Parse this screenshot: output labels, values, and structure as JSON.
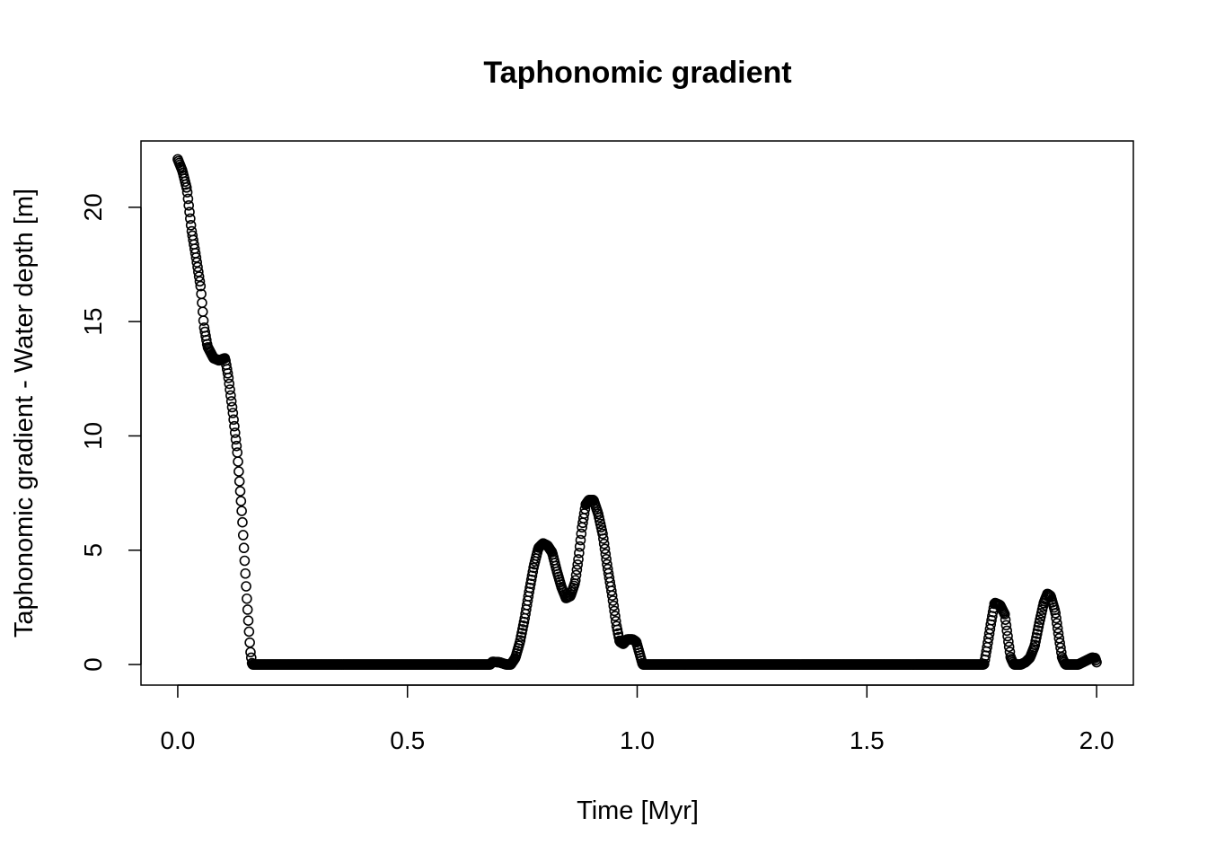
{
  "chart_data": {
    "type": "scatter",
    "title": "Taphonomic gradient",
    "xlabel": "Time [Myr]",
    "ylabel": "Taphonomic gradient - Water depth [m]",
    "xlim": [
      -0.08,
      2.08
    ],
    "ylim": [
      -0.9,
      22.9
    ],
    "xticks": [
      0.0,
      0.5,
      1.0,
      1.5,
      2.0
    ],
    "xtick_labels": [
      "0.0",
      "0.5",
      "1.0",
      "1.5",
      "2.0"
    ],
    "yticks": [
      0,
      5,
      10,
      15,
      20
    ],
    "ytick_labels": [
      "0",
      "5",
      "10",
      "15",
      "20"
    ],
    "grid": false,
    "marker": "open-circle",
    "color": "#000000",
    "profile": [
      [
        0.0,
        22.1
      ],
      [
        0.01,
        21.6
      ],
      [
        0.02,
        20.8
      ],
      [
        0.03,
        19.0
      ],
      [
        0.04,
        17.8
      ],
      [
        0.05,
        16.5
      ],
      [
        0.057,
        14.8
      ],
      [
        0.065,
        13.9
      ],
      [
        0.078,
        13.4
      ],
      [
        0.09,
        13.3
      ],
      [
        0.103,
        13.4
      ],
      [
        0.11,
        12.6
      ],
      [
        0.12,
        11.0
      ],
      [
        0.13,
        9.2
      ],
      [
        0.14,
        6.5
      ],
      [
        0.15,
        3.0
      ],
      [
        0.158,
        0.6
      ],
      [
        0.162,
        0.0
      ],
      [
        0.68,
        0.0
      ],
      [
        0.685,
        0.12
      ],
      [
        0.7,
        0.1
      ],
      [
        0.715,
        0.0
      ],
      [
        0.725,
        0.0
      ],
      [
        0.735,
        0.3
      ],
      [
        0.745,
        1.0
      ],
      [
        0.755,
        2.0
      ],
      [
        0.765,
        3.2
      ],
      [
        0.775,
        4.3
      ],
      [
        0.785,
        5.1
      ],
      [
        0.795,
        5.3
      ],
      [
        0.805,
        5.2
      ],
      [
        0.815,
        4.9
      ],
      [
        0.825,
        4.1
      ],
      [
        0.835,
        3.4
      ],
      [
        0.845,
        2.9
      ],
      [
        0.855,
        3.0
      ],
      [
        0.865,
        3.6
      ],
      [
        0.872,
        4.6
      ],
      [
        0.88,
        6.0
      ],
      [
        0.888,
        7.0
      ],
      [
        0.895,
        7.2
      ],
      [
        0.905,
        7.2
      ],
      [
        0.915,
        6.6
      ],
      [
        0.925,
        5.7
      ],
      [
        0.935,
        4.3
      ],
      [
        0.945,
        3.1
      ],
      [
        0.955,
        1.7
      ],
      [
        0.962,
        1.0
      ],
      [
        0.97,
        0.9
      ],
      [
        0.978,
        1.1
      ],
      [
        0.99,
        1.1
      ],
      [
        0.998,
        1.0
      ],
      [
        1.005,
        0.5
      ],
      [
        1.012,
        0.0
      ],
      [
        1.755,
        0.0
      ],
      [
        1.762,
        0.8
      ],
      [
        1.77,
        1.8
      ],
      [
        1.778,
        2.7
      ],
      [
        1.79,
        2.6
      ],
      [
        1.8,
        2.2
      ],
      [
        1.808,
        1.0
      ],
      [
        1.813,
        0.3
      ],
      [
        1.82,
        0.0
      ],
      [
        1.835,
        0.0
      ],
      [
        1.845,
        0.1
      ],
      [
        1.855,
        0.3
      ],
      [
        1.865,
        0.8
      ],
      [
        1.875,
        1.8
      ],
      [
        1.885,
        2.7
      ],
      [
        1.893,
        3.1
      ],
      [
        1.9,
        3.0
      ],
      [
        1.91,
        2.3
      ],
      [
        1.918,
        1.2
      ],
      [
        1.925,
        0.3
      ],
      [
        1.932,
        0.0
      ],
      [
        1.96,
        0.0
      ],
      [
        1.97,
        0.1
      ],
      [
        1.98,
        0.2
      ],
      [
        1.99,
        0.3
      ],
      [
        1.997,
        0.28
      ],
      [
        2.0,
        0.1
      ]
    ]
  }
}
